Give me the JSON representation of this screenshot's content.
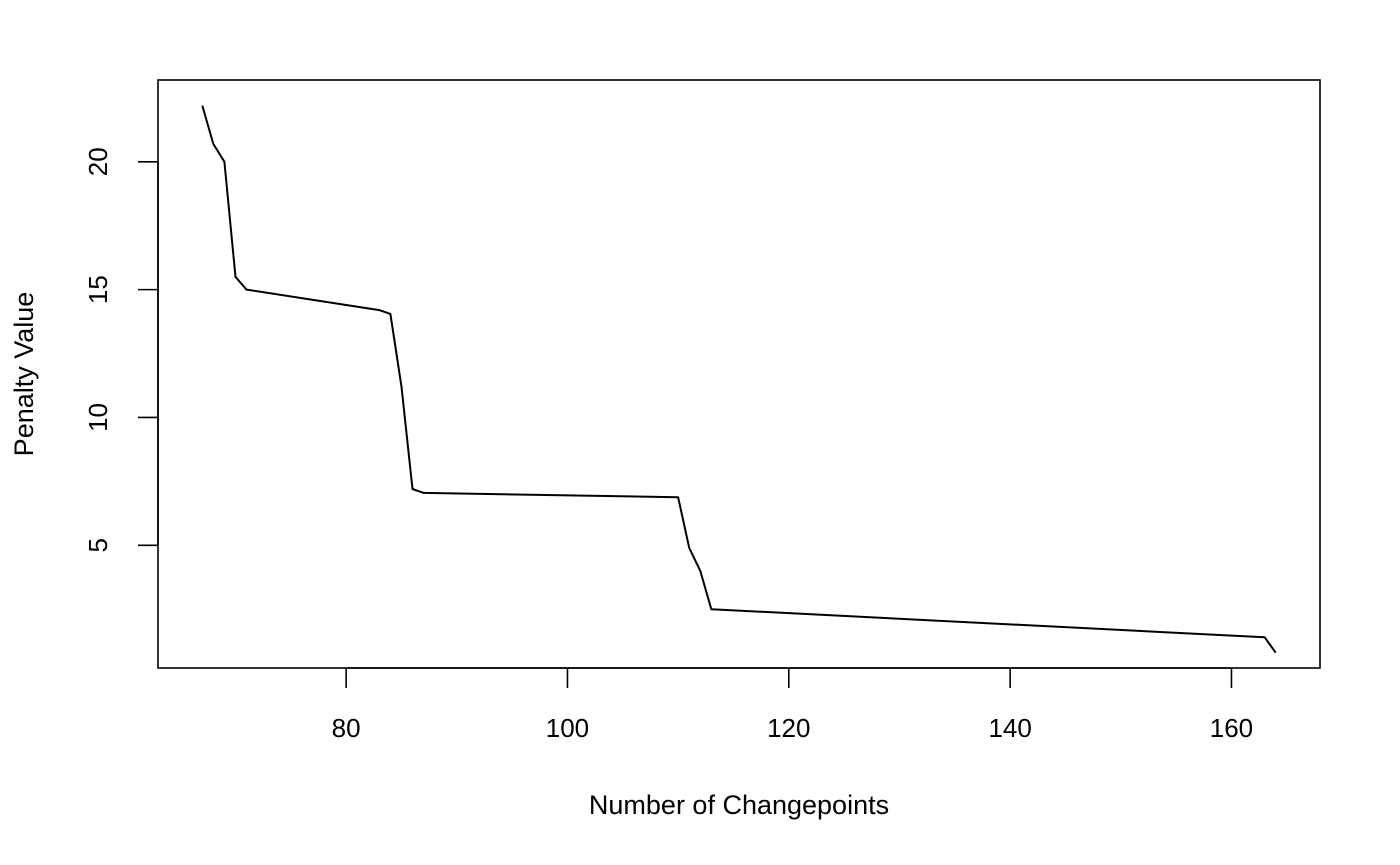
{
  "chart_data": {
    "type": "line",
    "title": "",
    "xlabel": "Number of Changepoints",
    "ylabel": "Penalty Value",
    "xlim": [
      63,
      168
    ],
    "ylim": [
      0.2,
      23.2
    ],
    "x_ticks": [
      80,
      100,
      120,
      140,
      160
    ],
    "y_ticks": [
      5,
      10,
      15,
      20
    ],
    "grid": false,
    "series": [
      {
        "x": [
          67,
          68,
          69,
          70,
          71,
          83,
          84,
          85,
          86,
          87,
          110,
          111,
          112,
          113,
          163,
          164
        ],
        "y": [
          22.2,
          20.7,
          20.0,
          15.5,
          15.0,
          14.2,
          14.05,
          11.2,
          7.2,
          7.05,
          6.88,
          4.9,
          4.0,
          2.5,
          1.4,
          0.8
        ],
        "color": "#000000"
      }
    ]
  }
}
